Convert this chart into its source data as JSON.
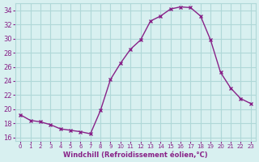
{
  "x": [
    0,
    1,
    2,
    3,
    4,
    5,
    6,
    7,
    8,
    9,
    10,
    11,
    12,
    13,
    14,
    15,
    16,
    17,
    18,
    19,
    20,
    21,
    22,
    23
  ],
  "y": [
    19.2,
    18.4,
    18.2,
    17.8,
    17.2,
    17.0,
    16.8,
    16.5,
    19.8,
    24.2,
    26.5,
    28.5,
    29.8,
    32.5,
    33.2,
    34.2,
    34.5,
    34.4,
    33.2,
    29.8,
    25.2,
    23.0,
    21.5,
    20.8
  ],
  "line_color": "#882288",
  "marker": "x",
  "marker_color": "#882288",
  "bg_color": "#d8f0f0",
  "grid_color": "#b0d8d8",
  "xlabel": "Windchill (Refroidissement éolien,°C)",
  "xlabel_color": "#882288",
  "tick_color": "#882288",
  "ylim": [
    15.5,
    35.0
  ],
  "xlim": [
    -0.5,
    23.5
  ],
  "yticks": [
    16,
    18,
    20,
    22,
    24,
    26,
    28,
    30,
    32,
    34
  ],
  "xticks": [
    0,
    1,
    2,
    3,
    4,
    5,
    6,
    7,
    8,
    9,
    10,
    11,
    12,
    13,
    14,
    15,
    16,
    17,
    18,
    19,
    20,
    21,
    22,
    23
  ]
}
